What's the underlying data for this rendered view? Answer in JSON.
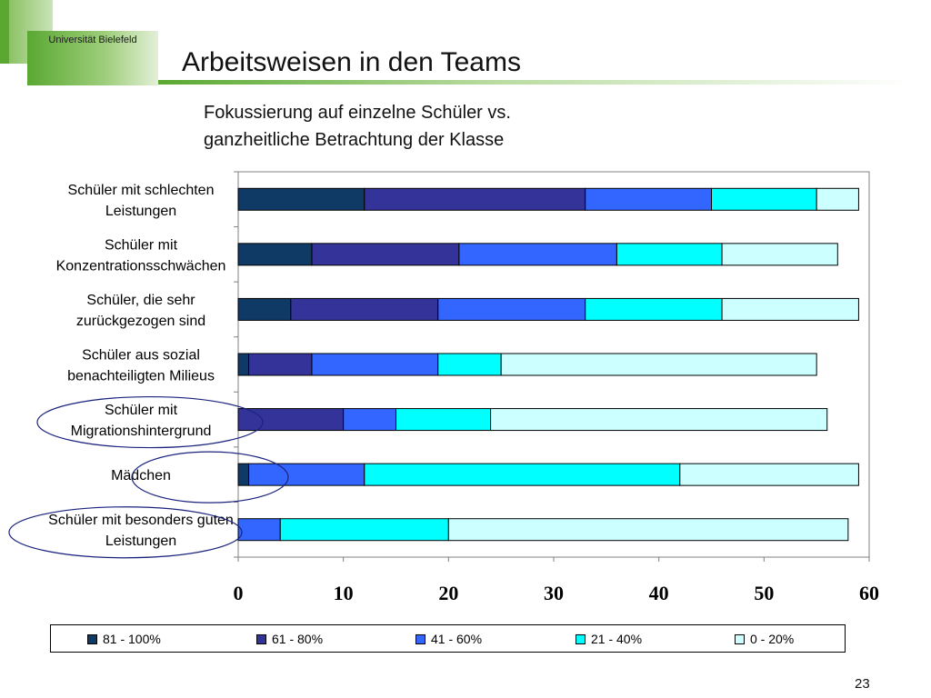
{
  "header": {
    "logo_text": "Universität Bielefeld",
    "title": "Arbeitsweisen in den Teams"
  },
  "subtitle_lines": [
    "Fokussierung auf einzelne Schüler vs.",
    "ganzheitliche Betrachtung der Klasse"
  ],
  "page_number": "23",
  "colors": {
    "accent_green": "#5aa832",
    "series": [
      "#0f3a66",
      "#33339a",
      "#3366ff",
      "#00ffff",
      "#ccffff"
    ],
    "annotation_ellipse": "#1a237e"
  },
  "chart_data": {
    "type": "bar",
    "orientation": "horizontal",
    "stacked": true,
    "categories": [
      [
        "Schüler mit schlechten",
        "Leistungen"
      ],
      [
        "Schüler mit",
        "Konzentrationsschwächen"
      ],
      [
        "Schüler, die sehr",
        "zurückgezogen sind"
      ],
      [
        "Schüler aus sozial",
        "benachteiligten Milieus"
      ],
      [
        "Schüler mit",
        "Migrationshintergrund"
      ],
      [
        "Mädchen"
      ],
      [
        "Schüler mit besonders guten",
        "Leistungen"
      ]
    ],
    "series": [
      {
        "name": "81 - 100%",
        "values": [
          12,
          7,
          5,
          1,
          0,
          1,
          0
        ]
      },
      {
        "name": "61 - 80%",
        "values": [
          21,
          14,
          14,
          6,
          10,
          0,
          0
        ]
      },
      {
        "name": "41 - 60%",
        "values": [
          12,
          15,
          14,
          12,
          5,
          11,
          4
        ]
      },
      {
        "name": "21 - 40%",
        "values": [
          10,
          10,
          13,
          6,
          9,
          30,
          16
        ]
      },
      {
        "name": "0 - 20%",
        "values": [
          4,
          11,
          13,
          30,
          32,
          17,
          38
        ]
      }
    ],
    "xlim": [
      0,
      60
    ],
    "xticks": [
      "0",
      "10",
      "20",
      "30",
      "40",
      "50",
      "60"
    ],
    "highlighted_categories": [
      4,
      5,
      6
    ],
    "legend_position": "bottom",
    "grid": false
  }
}
